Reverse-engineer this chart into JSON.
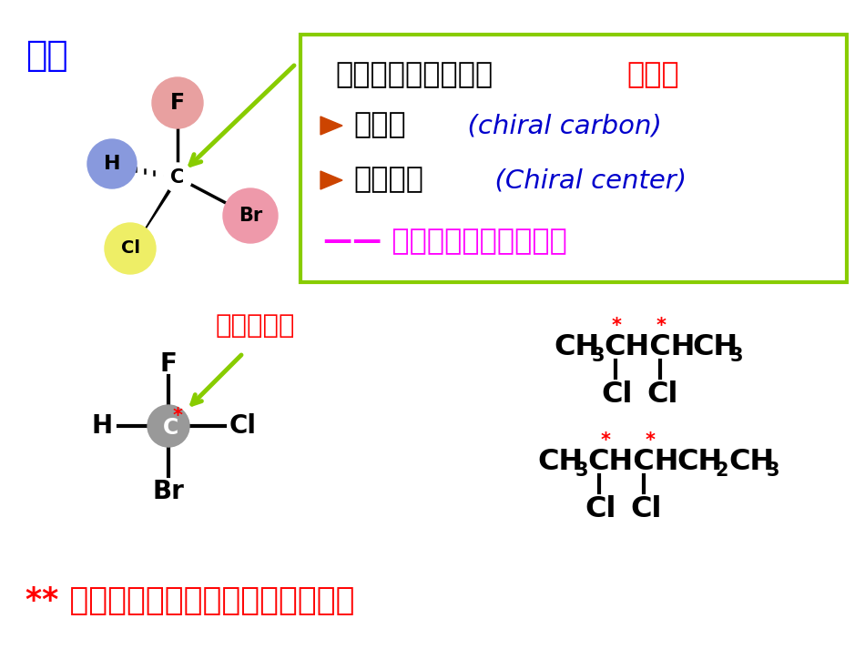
{
  "background_color": "#ffffff",
  "title_example": "例：",
  "title_example_color": "#0000ff",
  "title_example_fontsize": 28,
  "box_color": "#88cc00",
  "box_text1_black": "连有四个不同基团的",
  "box_text1_red": "碳原子",
  "box_bullet1_black": "手性碳  ",
  "box_bullet1_italic": "(chiral carbon)",
  "box_bullet2_black": "手性中心  ",
  "box_bullet2_italic": "(Chiral center)",
  "box_line_text": "—— 分子中产出手性的原子",
  "box_line_color": "#ff00ff",
  "arrow_color": "#88cc00",
  "label_chiral_mark": "手性碳标记",
  "label_chiral_mark_color": "#ff0000",
  "bottom_text": "** 有一个手性碳原子的分子是手性的",
  "bottom_text_color": "#ff0000",
  "atom_F_color": "#e8a0a0",
  "atom_H_color": "#8899dd",
  "atom_Cl_color": "#eeee66",
  "atom_Br_color": "#ee99aa",
  "atom_C_color": "#999999",
  "star_color": "#ff0000",
  "bullet_color": "#cc4400",
  "italic_color": "#0000cc"
}
